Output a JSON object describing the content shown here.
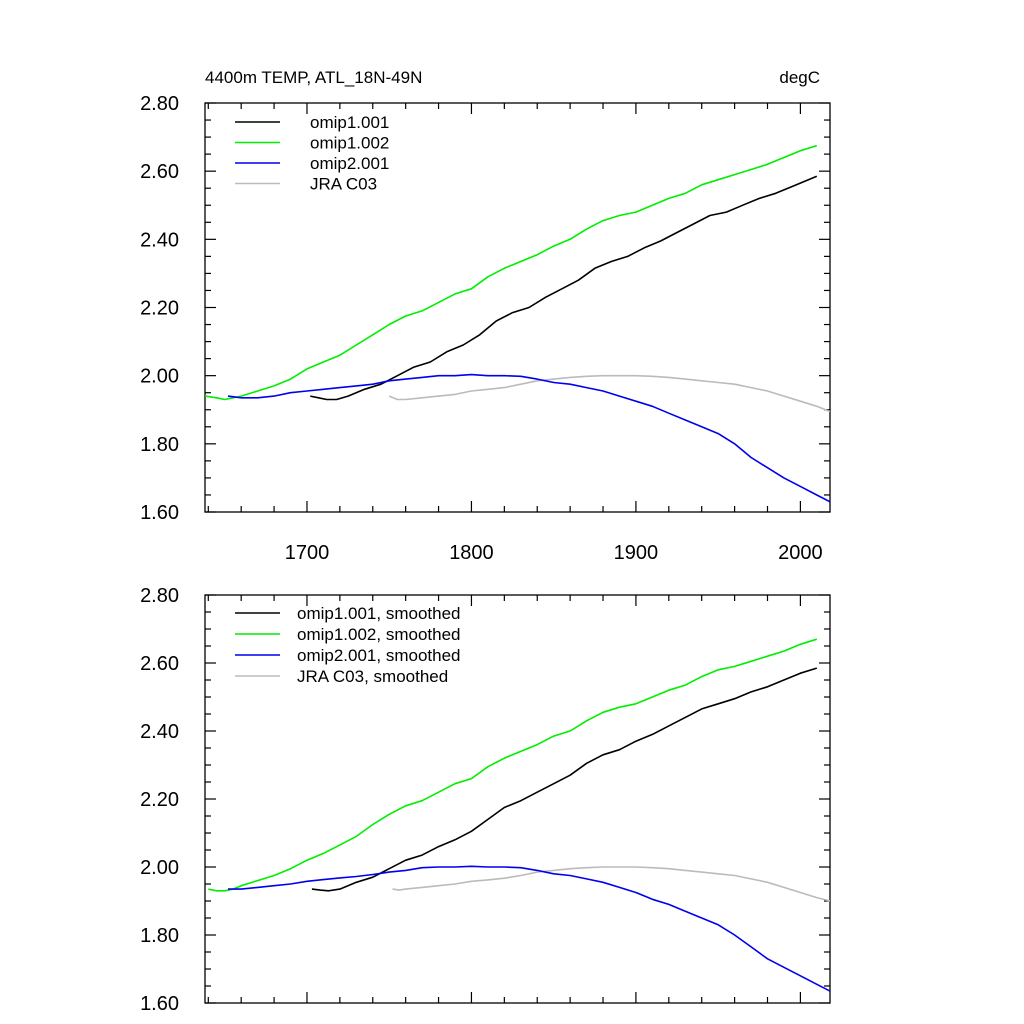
{
  "chart_data": [
    {
      "type": "line",
      "title": "4400m TEMP, ATL_18N-49N",
      "units": "degC",
      "xlim": [
        1638,
        2018
      ],
      "ylim": [
        1.6,
        2.8
      ],
      "xticks": [
        1700,
        1800,
        1900,
        2000
      ],
      "xtick_labels": [
        "1700",
        "1800",
        "1900",
        "2000"
      ],
      "yticks": [
        1.6,
        1.8,
        2.0,
        2.2,
        2.4,
        2.6,
        2.8
      ],
      "ytick_labels": [
        "1.60",
        "1.80",
        "2.00",
        "2.20",
        "2.40",
        "2.60",
        "2.80"
      ],
      "legend_position": "top-left",
      "grid": false,
      "series": [
        {
          "name": "omip1.001",
          "color": "#000000",
          "x": [
            1702,
            1707,
            1712,
            1718,
            1725,
            1735,
            1745,
            1755,
            1765,
            1775,
            1785,
            1795,
            1805,
            1815,
            1825,
            1835,
            1845,
            1855,
            1865,
            1875,
            1885,
            1895,
            1905,
            1915,
            1925,
            1935,
            1945,
            1955,
            1965,
            1975,
            1985,
            1995,
            2010
          ],
          "y": [
            1.94,
            1.935,
            1.93,
            1.93,
            1.94,
            1.96,
            1.975,
            2.0,
            2.025,
            2.04,
            2.07,
            2.09,
            2.12,
            2.16,
            2.185,
            2.2,
            2.23,
            2.255,
            2.28,
            2.315,
            2.335,
            2.35,
            2.375,
            2.395,
            2.42,
            2.445,
            2.47,
            2.48,
            2.5,
            2.52,
            2.535,
            2.555,
            2.585
          ]
        },
        {
          "name": "omip1.002",
          "color": "#00ee00",
          "x": [
            1638,
            1645,
            1650,
            1655,
            1660,
            1670,
            1680,
            1690,
            1700,
            1710,
            1720,
            1730,
            1740,
            1750,
            1760,
            1770,
            1780,
            1790,
            1800,
            1810,
            1820,
            1830,
            1840,
            1850,
            1860,
            1870,
            1880,
            1890,
            1900,
            1910,
            1920,
            1930,
            1940,
            1950,
            1960,
            1970,
            1980,
            1990,
            2000,
            2010
          ],
          "y": [
            1.94,
            1.935,
            1.93,
            1.935,
            1.94,
            1.955,
            1.97,
            1.99,
            2.02,
            2.04,
            2.06,
            2.09,
            2.12,
            2.15,
            2.175,
            2.19,
            2.215,
            2.24,
            2.255,
            2.29,
            2.315,
            2.335,
            2.355,
            2.38,
            2.4,
            2.43,
            2.455,
            2.47,
            2.48,
            2.5,
            2.52,
            2.535,
            2.56,
            2.575,
            2.59,
            2.605,
            2.62,
            2.64,
            2.66,
            2.675
          ]
        },
        {
          "name": "omip2.001",
          "color": "#0000ee",
          "x": [
            1652,
            1660,
            1670,
            1680,
            1690,
            1700,
            1710,
            1720,
            1730,
            1740,
            1750,
            1760,
            1770,
            1780,
            1790,
            1800,
            1810,
            1820,
            1830,
            1840,
            1850,
            1860,
            1870,
            1880,
            1890,
            1900,
            1910,
            1920,
            1930,
            1940,
            1950,
            1960,
            1970,
            1980,
            1990,
            2000,
            2010,
            2018
          ],
          "y": [
            1.94,
            1.935,
            1.935,
            1.94,
            1.95,
            1.955,
            1.96,
            1.965,
            1.97,
            1.975,
            1.985,
            1.99,
            1.995,
            2.0,
            2.0,
            2.003,
            2.0,
            2.0,
            1.998,
            1.99,
            1.98,
            1.975,
            1.965,
            1.955,
            1.94,
            1.925,
            1.91,
            1.89,
            1.87,
            1.85,
            1.83,
            1.8,
            1.76,
            1.73,
            1.7,
            1.675,
            1.65,
            1.63
          ]
        },
        {
          "name": "JRA C03",
          "color": "#bbbbbb",
          "x": [
            1750,
            1755,
            1760,
            1770,
            1780,
            1790,
            1800,
            1810,
            1820,
            1830,
            1840,
            1850,
            1860,
            1870,
            1880,
            1890,
            1900,
            1910,
            1920,
            1930,
            1940,
            1950,
            1960,
            1970,
            1980,
            1990,
            2000,
            2010,
            2018
          ],
          "y": [
            1.94,
            1.93,
            1.93,
            1.935,
            1.94,
            1.945,
            1.955,
            1.96,
            1.965,
            1.975,
            1.985,
            1.99,
            1.995,
            1.998,
            2.0,
            2.0,
            2.0,
            1.998,
            1.995,
            1.99,
            1.985,
            1.98,
            1.975,
            1.965,
            1.955,
            1.94,
            1.925,
            1.91,
            1.895
          ]
        }
      ]
    },
    {
      "type": "line",
      "title": "",
      "xlim": [
        1638,
        2018
      ],
      "ylim": [
        1.6,
        2.8
      ],
      "yticks": [
        1.6,
        1.8,
        2.0,
        2.2,
        2.4,
        2.6,
        2.8
      ],
      "ytick_labels": [
        "1.60",
        "1.80",
        "2.00",
        "2.20",
        "2.40",
        "2.60",
        "2.80"
      ],
      "legend_position": "top-left",
      "grid": false,
      "series": [
        {
          "name": "omip1.001, smoothed",
          "color": "#000000",
          "x": [
            1703,
            1708,
            1713,
            1720,
            1730,
            1740,
            1750,
            1760,
            1770,
            1780,
            1790,
            1800,
            1810,
            1820,
            1830,
            1840,
            1850,
            1860,
            1870,
            1880,
            1890,
            1900,
            1910,
            1920,
            1930,
            1940,
            1950,
            1960,
            1970,
            1980,
            1990,
            2000,
            2010
          ],
          "y": [
            1.935,
            1.932,
            1.93,
            1.935,
            1.955,
            1.97,
            1.995,
            2.02,
            2.035,
            2.06,
            2.08,
            2.105,
            2.14,
            2.175,
            2.195,
            2.22,
            2.245,
            2.27,
            2.305,
            2.33,
            2.345,
            2.37,
            2.39,
            2.415,
            2.44,
            2.465,
            2.48,
            2.495,
            2.515,
            2.53,
            2.55,
            2.57,
            2.585
          ]
        },
        {
          "name": "omip1.002, smoothed",
          "color": "#00ee00",
          "x": [
            1640,
            1645,
            1650,
            1655,
            1660,
            1670,
            1680,
            1690,
            1700,
            1710,
            1720,
            1730,
            1740,
            1750,
            1760,
            1770,
            1780,
            1790,
            1800,
            1810,
            1820,
            1830,
            1840,
            1850,
            1860,
            1870,
            1880,
            1890,
            1900,
            1910,
            1920,
            1930,
            1940,
            1950,
            1960,
            1970,
            1980,
            1990,
            2000,
            2010
          ],
          "y": [
            1.935,
            1.93,
            1.93,
            1.935,
            1.945,
            1.96,
            1.975,
            1.995,
            2.02,
            2.04,
            2.065,
            2.09,
            2.125,
            2.155,
            2.18,
            2.195,
            2.22,
            2.245,
            2.26,
            2.295,
            2.32,
            2.34,
            2.36,
            2.385,
            2.4,
            2.43,
            2.455,
            2.47,
            2.48,
            2.5,
            2.52,
            2.535,
            2.56,
            2.58,
            2.59,
            2.605,
            2.62,
            2.635,
            2.655,
            2.67
          ]
        },
        {
          "name": "omip2.001, smoothed",
          "color": "#0000ee",
          "x": [
            1652,
            1660,
            1670,
            1680,
            1690,
            1700,
            1710,
            1720,
            1730,
            1740,
            1750,
            1760,
            1770,
            1780,
            1790,
            1800,
            1810,
            1820,
            1830,
            1840,
            1850,
            1860,
            1870,
            1880,
            1890,
            1900,
            1910,
            1920,
            1930,
            1940,
            1950,
            1960,
            1970,
            1980,
            1990,
            2000,
            2010,
            2018
          ],
          "y": [
            1.935,
            1.935,
            1.94,
            1.945,
            1.95,
            1.958,
            1.963,
            1.968,
            1.972,
            1.978,
            1.985,
            1.99,
            1.998,
            2.0,
            2.0,
            2.002,
            2.0,
            2.0,
            1.998,
            1.99,
            1.98,
            1.975,
            1.965,
            1.955,
            1.94,
            1.925,
            1.905,
            1.89,
            1.87,
            1.85,
            1.83,
            1.8,
            1.765,
            1.73,
            1.705,
            1.68,
            1.655,
            1.635
          ]
        },
        {
          "name": "JRA C03, smoothed",
          "color": "#bbbbbb",
          "x": [
            1752,
            1756,
            1760,
            1770,
            1780,
            1790,
            1800,
            1810,
            1820,
            1830,
            1840,
            1850,
            1860,
            1870,
            1880,
            1890,
            1900,
            1910,
            1920,
            1930,
            1940,
            1950,
            1960,
            1970,
            1980,
            1990,
            2000,
            2010,
            2018
          ],
          "y": [
            1.935,
            1.932,
            1.935,
            1.94,
            1.945,
            1.95,
            1.958,
            1.962,
            1.967,
            1.975,
            1.985,
            1.99,
            1.995,
            1.998,
            2.0,
            2.0,
            2.0,
            1.998,
            1.995,
            1.99,
            1.985,
            1.98,
            1.975,
            1.965,
            1.955,
            1.94,
            1.925,
            1.91,
            1.9
          ]
        }
      ]
    }
  ]
}
